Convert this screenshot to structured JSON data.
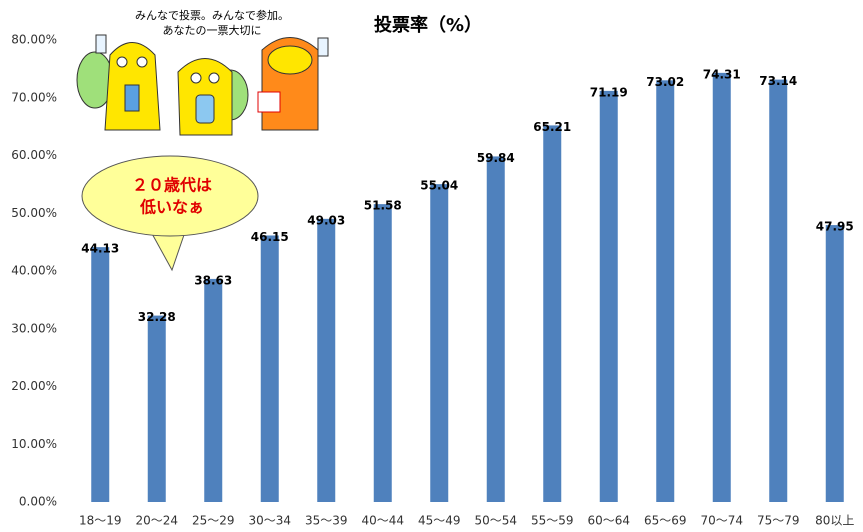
{
  "chart_data": {
    "type": "bar",
    "title": "投票率（%）",
    "annotations": [
      "みんなで投票。みんなで参加。",
      "あなたの一票大切に",
      "２０歳代は",
      "低いなぁ"
    ],
    "categories": [
      "18〜19",
      "20〜24",
      "25〜29",
      "30〜34",
      "35〜39",
      "40〜44",
      "45〜49",
      "50〜54",
      "55〜59",
      "60〜64",
      "65〜69",
      "70〜74",
      "75〜79",
      "80以上"
    ],
    "values": [
      44.13,
      32.28,
      38.63,
      46.15,
      49.03,
      51.58,
      55.04,
      59.84,
      65.21,
      71.19,
      73.02,
      74.31,
      73.14,
      47.95
    ],
    "color": "#4f81bd",
    "ylim": [
      0,
      80
    ],
    "yticks": [
      {
        "value": 0,
        "label": "0.00%"
      },
      {
        "value": 10,
        "label": "10.00%"
      },
      {
        "value": 20,
        "label": "20.00%"
      },
      {
        "value": 30,
        "label": "30.00%"
      },
      {
        "value": 40,
        "label": "40.00%"
      },
      {
        "value": 50,
        "label": "50.00%"
      },
      {
        "value": 60,
        "label": "60.00%"
      },
      {
        "value": 70,
        "label": "70.00%"
      },
      {
        "value": 80,
        "label": "80.00%"
      }
    ],
    "grid": false
  }
}
